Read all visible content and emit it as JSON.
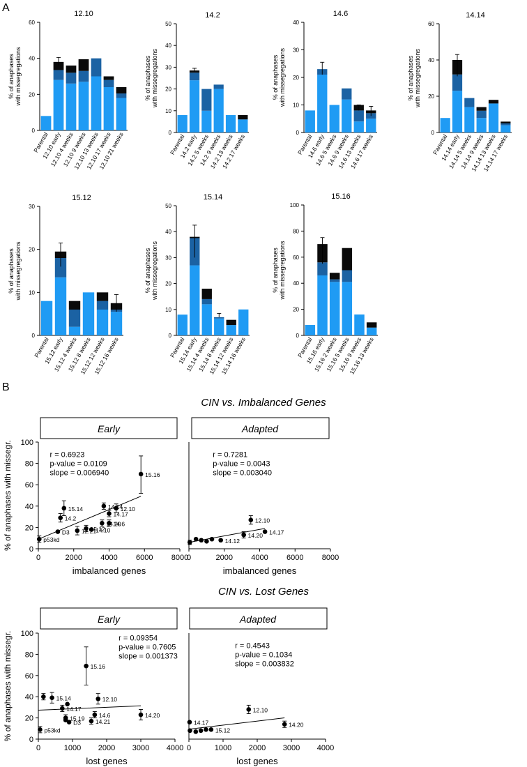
{
  "panel_labels": {
    "a": "A",
    "b": "B"
  },
  "colors": {
    "light": "#1f9bf4",
    "mid": "#1b62a3",
    "dark": "#0a0a0a",
    "point": "#000000"
  },
  "bar_ylabel_line1": "% of anaphases",
  "bar_ylabel_line2": "with missegregations",
  "chart_data": [
    {
      "type": "bar",
      "title": "12.10",
      "ylim": [
        0,
        60
      ],
      "yticks": [
        0,
        20,
        40,
        60
      ],
      "categories": [
        "Parental",
        "12.10 early",
        "12.10 4 weeks",
        "12.10 9 weeks",
        "12.10 13 weeks",
        "12.10 17 weeks",
        "12.10 21 weeks"
      ],
      "series": [
        {
          "name": "light",
          "values": [
            8,
            28,
            26,
            27,
            30,
            24,
            18
          ]
        },
        {
          "name": "mid",
          "values": [
            0,
            5.5,
            6,
            6,
            10,
            4,
            2.5
          ]
        },
        {
          "name": "dark",
          "values": [
            0,
            4.5,
            4,
            6.5,
            0,
            2,
            3.5
          ]
        }
      ],
      "errors": [
        null,
        [
          36,
          40.5
        ],
        null,
        null,
        null,
        null,
        null
      ]
    },
    {
      "type": "bar",
      "title": "14.2",
      "ylim": [
        0,
        50
      ],
      "yticks": [
        0,
        10,
        20,
        30,
        40,
        50
      ],
      "categories": [
        "Parental",
        "14.2 early",
        "14.2 5 weeks",
        "14.2 9 weeks",
        "14.2 13 weeks",
        "14.2 17 weeks"
      ],
      "series": [
        {
          "name": "light",
          "values": [
            8,
            24,
            10,
            20,
            8,
            6
          ]
        },
        {
          "name": "mid",
          "values": [
            0,
            3.5,
            10,
            2,
            0,
            0
          ]
        },
        {
          "name": "dark",
          "values": [
            0,
            1,
            0,
            0,
            0,
            2
          ]
        }
      ],
      "errors": [
        null,
        [
          28,
          29.5
        ],
        null,
        null,
        null,
        null
      ]
    },
    {
      "type": "bar",
      "title": "14.6",
      "ylim": [
        0,
        40
      ],
      "yticks": [
        0,
        10,
        20,
        30,
        40
      ],
      "categories": [
        "Parental",
        "14.6 early",
        "14.6 5 weeks",
        "14.6 9 weeks",
        "14.6 13 weeks",
        "14.6 17 weeks"
      ],
      "series": [
        {
          "name": "light",
          "values": [
            8,
            21,
            10,
            12,
            4,
            5
          ]
        },
        {
          "name": "mid",
          "values": [
            0,
            2,
            0,
            4,
            4,
            2
          ]
        },
        {
          "name": "dark",
          "values": [
            0,
            0,
            0,
            0,
            2,
            1
          ]
        }
      ],
      "errors": [
        null,
        [
          21,
          25.5
        ],
        null,
        null,
        [
          8,
          10
        ],
        [
          6,
          9.5
        ]
      ]
    },
    {
      "type": "bar",
      "title": "14.14",
      "ylim": [
        0,
        60
      ],
      "yticks": [
        0,
        20,
        40,
        60
      ],
      "categories": [
        "Parental",
        "14.14 early",
        "14.14 5 weeks",
        "14.14 9 weeks",
        "14.14 13 weeks",
        "14.14 17 weeks"
      ],
      "series": [
        {
          "name": "light",
          "values": [
            8,
            23,
            14,
            8,
            16,
            4
          ]
        },
        {
          "name": "mid",
          "values": [
            0,
            9,
            5,
            4,
            0,
            1
          ]
        },
        {
          "name": "dark",
          "values": [
            0,
            8,
            0,
            2,
            2,
            1
          ]
        }
      ],
      "errors": [
        null,
        [
          31,
          43
        ],
        null,
        null,
        null,
        null
      ]
    },
    {
      "type": "bar",
      "title": "15.12",
      "ylim": [
        0,
        30
      ],
      "yticks": [
        0,
        10,
        20,
        30
      ],
      "categories": [
        "Parental",
        "15.12 early",
        "15.12 4 weeks",
        "15.12 8 weeks",
        "15.12 12 weeks",
        "15.12 16 weeks"
      ],
      "series": [
        {
          "name": "light",
          "values": [
            8,
            13.5,
            2,
            10,
            6,
            5.5
          ]
        },
        {
          "name": "mid",
          "values": [
            0,
            4.5,
            4,
            0,
            2,
            0.5
          ]
        },
        {
          "name": "dark",
          "values": [
            0,
            1.5,
            2,
            0,
            2,
            1.5
          ]
        }
      ],
      "errors": [
        null,
        [
          16,
          21.5
        ],
        null,
        null,
        null,
        [
          5.5,
          9.5
        ]
      ]
    },
    {
      "type": "bar",
      "title": "15.14",
      "ylim": [
        0,
        50
      ],
      "yticks": [
        0,
        10,
        20,
        30,
        40,
        50
      ],
      "categories": [
        "Parental",
        "15.14 early",
        "15.14 4 weeks",
        "15.14 8 weeks",
        "15.14 12 weeks",
        "15.14 16 weeks"
      ],
      "series": [
        {
          "name": "light",
          "values": [
            8,
            27,
            12,
            6.5,
            4,
            10
          ]
        },
        {
          "name": "mid",
          "values": [
            0,
            10.5,
            2,
            0.5,
            0,
            0
          ]
        },
        {
          "name": "dark",
          "values": [
            0,
            0.5,
            4,
            0,
            2,
            0
          ]
        }
      ],
      "errors": [
        null,
        [
          30,
          42.5
        ],
        null,
        [
          7,
          8.5
        ],
        null,
        null
      ]
    },
    {
      "type": "bar",
      "title": "15.16",
      "ylim": [
        0,
        100
      ],
      "yticks": [
        0,
        20,
        40,
        60,
        80,
        100
      ],
      "categories": [
        "Parental",
        "15.16 early",
        "15.16 2 weeks",
        "15.16 5 weeks",
        "15.16 9 weeks",
        "15.16 13 weeks"
      ],
      "series": [
        {
          "name": "light",
          "values": [
            8,
            46,
            41,
            41,
            16,
            6
          ]
        },
        {
          "name": "mid",
          "values": [
            0,
            10,
            2,
            9,
            0,
            0
          ]
        },
        {
          "name": "dark",
          "values": [
            0,
            14,
            5,
            17,
            0,
            4
          ]
        }
      ],
      "errors": [
        null,
        [
          55,
          75
        ],
        null,
        null,
        null,
        null
      ]
    },
    {
      "type": "scatter",
      "title": "CIN vs. Imbalanced Genes",
      "facet": "Early",
      "xlabel": "imbalanced genes",
      "ylabel": "% of anaphases with missegr.",
      "xlim": [
        0,
        8000
      ],
      "ylim": [
        0,
        100
      ],
      "xticks": [
        0,
        2000,
        4000,
        6000,
        8000
      ],
      "yticks": [
        0,
        20,
        40,
        60,
        80,
        100
      ],
      "stats": [
        "r = 0.6923",
        "p-value = 0.0109",
        "slope = 0.006940"
      ],
      "fit_x": [
        0,
        5800
      ],
      "points": [
        {
          "label": "p53kd",
          "x": 50,
          "y": 9,
          "err": [
            6,
            12
          ]
        },
        {
          "label": "D3",
          "x": 1100,
          "y": 16,
          "err": null
        },
        {
          "label": "14.2",
          "x": 1250,
          "y": 29,
          "err": [
            25,
            33
          ]
        },
        {
          "label": "15.14",
          "x": 1450,
          "y": 38,
          "err": [
            31,
            45
          ]
        },
        {
          "label": "12.21",
          "x": 2200,
          "y": 17,
          "err": [
            13,
            21
          ]
        },
        {
          "label": "15.12",
          "x": 2700,
          "y": 19,
          "err": [
            16,
            22
          ]
        },
        {
          "label": "14.10",
          "x": 3000,
          "y": 18,
          "err": null
        },
        {
          "label": "15.16",
          "x": 5800,
          "y": 70,
          "err": [
            52,
            87
          ]
        },
        {
          "label": "14.14",
          "x": 3700,
          "y": 40,
          "err": [
            37,
            43
          ]
        },
        {
          "label": "12.10",
          "x": 4400,
          "y": 38,
          "err": [
            34,
            42
          ]
        },
        {
          "label": "14.17",
          "x": 4000,
          "y": 33,
          "err": [
            30,
            36
          ]
        },
        {
          "label": "14.20",
          "x": 3600,
          "y": 24,
          "err": [
            21,
            27
          ]
        },
        {
          "label": "14.6",
          "x": 4000,
          "y": 24,
          "err": [
            21,
            27
          ]
        }
      ]
    },
    {
      "type": "scatter",
      "title": "CIN vs. Imbalanced Genes",
      "facet": "Adapted",
      "xlabel": "imbalanced genes",
      "ylabel": "",
      "xlim": [
        0,
        8000
      ],
      "ylim": [
        0,
        100
      ],
      "xticks": [
        0,
        2000,
        4000,
        6000,
        8000
      ],
      "stats": [
        "r = 0.7281",
        "p-value = 0.0043",
        "slope = 0.003040"
      ],
      "fit_x": [
        0,
        4300
      ],
      "points": [
        {
          "label": "",
          "x": 50,
          "y": 6,
          "err": [
            4,
            8
          ]
        },
        {
          "label": "",
          "x": 400,
          "y": 9,
          "err": null
        },
        {
          "label": "",
          "x": 700,
          "y": 8,
          "err": null
        },
        {
          "label": "",
          "x": 1000,
          "y": 7,
          "err": null
        },
        {
          "label": "",
          "x": 1300,
          "y": 9,
          "err": null
        },
        {
          "label": "14.12",
          "x": 1800,
          "y": 8,
          "err": null
        },
        {
          "label": "14.20",
          "x": 3100,
          "y": 13,
          "err": [
            10,
            16
          ]
        },
        {
          "label": "12.10",
          "x": 3500,
          "y": 27,
          "err": [
            23,
            31
          ]
        },
        {
          "label": "14.17",
          "x": 4300,
          "y": 16,
          "err": null
        }
      ]
    },
    {
      "type": "scatter",
      "title": "CIN vs. Lost Genes",
      "facet": "Early",
      "xlabel": "lost genes",
      "ylabel": "% of anaphases with missegr.",
      "xlim": [
        0,
        4000
      ],
      "ylim": [
        0,
        100
      ],
      "xticks": [
        0,
        1000,
        2000,
        3000,
        4000
      ],
      "yticks": [
        0,
        20,
        40,
        60,
        80,
        100
      ],
      "stats": [
        "r = 0.09354",
        "p-value = 0.7605",
        "slope = 0.001373"
      ],
      "fit_x": [
        0,
        3000
      ],
      "points": [
        {
          "label": "p53kd",
          "x": 50,
          "y": 9,
          "err": [
            6,
            12
          ]
        },
        {
          "label": "",
          "x": 150,
          "y": 40,
          "err": [
            37,
            43
          ]
        },
        {
          "label": "15.14",
          "x": 400,
          "y": 39,
          "err": [
            34,
            44
          ]
        },
        {
          "label": "14.17",
          "x": 700,
          "y": 29,
          "err": [
            26,
            32
          ]
        },
        {
          "label": "",
          "x": 850,
          "y": 33,
          "err": null
        },
        {
          "label": "15.19",
          "x": 800,
          "y": 20,
          "err": [
            17,
            23
          ]
        },
        {
          "label": "",
          "x": 800,
          "y": 18,
          "err": null
        },
        {
          "label": "D3",
          "x": 900,
          "y": 16,
          "err": null
        },
        {
          "label": "15.16",
          "x": 1400,
          "y": 69,
          "err": [
            51,
            87
          ]
        },
        {
          "label": "12.10",
          "x": 1750,
          "y": 38,
          "err": [
            33,
            43
          ]
        },
        {
          "label": "14.6",
          "x": 1650,
          "y": 23,
          "err": [
            20,
            26
          ]
        },
        {
          "label": "14.21",
          "x": 1550,
          "y": 17,
          "err": [
            14,
            20
          ]
        },
        {
          "label": "14.20",
          "x": 3000,
          "y": 23,
          "err": [
            18,
            28
          ]
        }
      ]
    },
    {
      "type": "scatter",
      "title": "CIN vs. Lost Genes",
      "facet": "Adapted",
      "xlabel": "lost genes",
      "ylabel": "",
      "xlim": [
        0,
        4000
      ],
      "ylim": [
        0,
        100
      ],
      "xticks": [
        0,
        1000,
        2000,
        3000,
        4000
      ],
      "stats": [
        "r = 0.4543",
        "p-value = 0.1034",
        "slope = 0.003832"
      ],
      "fit_x": [
        0,
        2800
      ],
      "points": [
        {
          "label": "14.17",
          "x": 20,
          "y": 16,
          "err": null
        },
        {
          "label": "",
          "x": 30,
          "y": 8,
          "err": null
        },
        {
          "label": "",
          "x": 200,
          "y": 7,
          "err": null
        },
        {
          "label": "",
          "x": 350,
          "y": 8,
          "err": null
        },
        {
          "label": "",
          "x": 500,
          "y": 9,
          "err": null
        },
        {
          "label": "15.12",
          "x": 650,
          "y": 9,
          "err": null
        },
        {
          "label": "12.10",
          "x": 1750,
          "y": 28,
          "err": [
            24,
            32
          ]
        },
        {
          "label": "14.20",
          "x": 2800,
          "y": 14,
          "err": [
            11,
            17
          ]
        }
      ]
    }
  ]
}
